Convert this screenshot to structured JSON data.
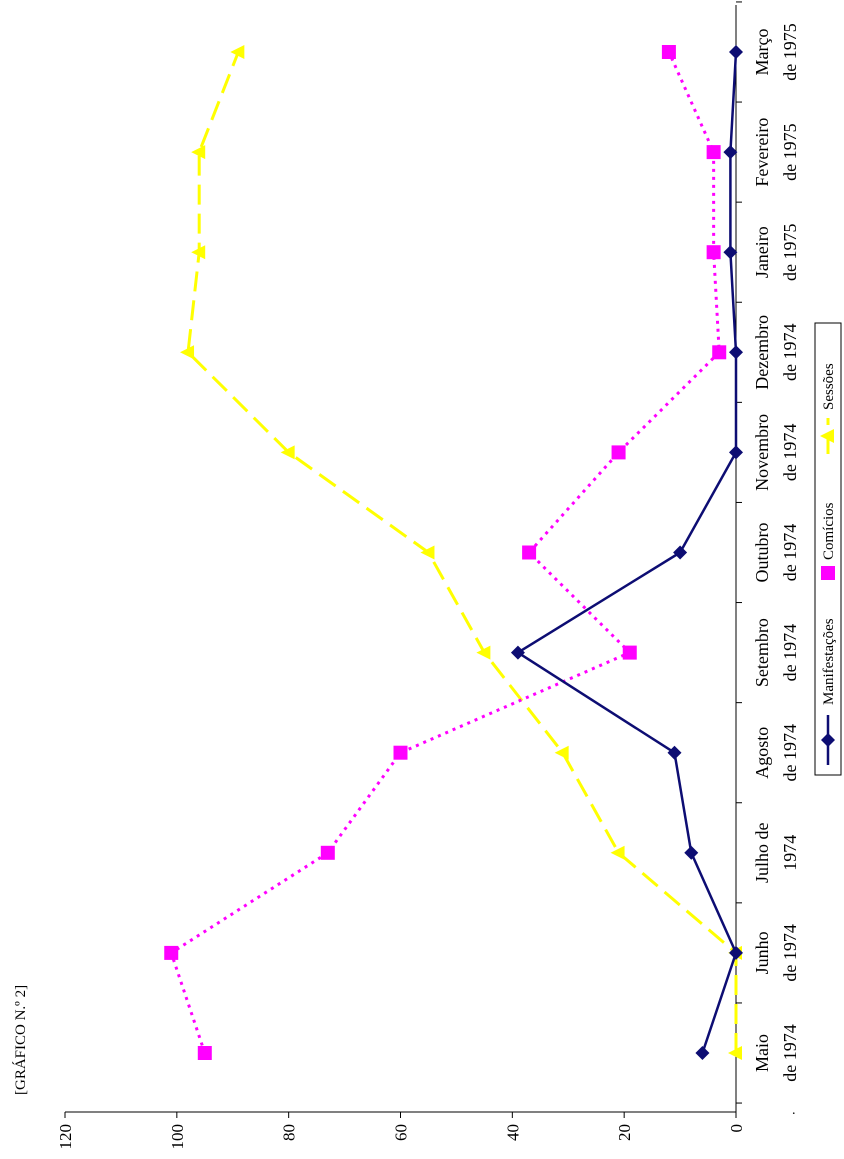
{
  "header": {
    "label": "[GRÁFICO N.º 2]"
  },
  "footnote": ".",
  "chart_data": {
    "type": "line",
    "orientation": "rotated-90",
    "title": "",
    "xlabel": "",
    "ylabel": "",
    "ylim": [
      0,
      120
    ],
    "y_ticks": [
      "0",
      "20",
      "40",
      "60",
      "80",
      "100",
      "120"
    ],
    "categories": [
      [
        "Maio",
        "de 1974"
      ],
      [
        "Junho",
        "de 1974"
      ],
      [
        "Julho de",
        "1974"
      ],
      [
        "Agosto",
        "de 1974"
      ],
      [
        "Setembro",
        "de 1974"
      ],
      [
        "Outubro",
        "de 1974"
      ],
      [
        "Novembro",
        "de 1974"
      ],
      [
        "Dezembro",
        "de 1974"
      ],
      [
        "Janeiro",
        "de 1975"
      ],
      [
        "Fevereiro",
        "de 1975"
      ],
      [
        "Março",
        "de 1975"
      ]
    ],
    "series": [
      {
        "name": "Manifestações",
        "color": "#0d0d73",
        "marker": "diamond",
        "line": "solid",
        "values": [
          6,
          0,
          8,
          11,
          39,
          10,
          0,
          0,
          1,
          1,
          0
        ]
      },
      {
        "name": "Comícios",
        "color": "#ff00ff",
        "marker": "square",
        "line": "dotted",
        "values": [
          95,
          101,
          73,
          60,
          19,
          37,
          21,
          3,
          4,
          4,
          12
        ]
      },
      {
        "name": "Sessões",
        "color": "#ffff00",
        "marker": "triangle",
        "line": "dashed",
        "values": [
          0,
          0,
          21,
          31,
          45,
          55,
          80,
          98,
          96,
          96,
          89
        ]
      }
    ],
    "legend": {
      "placement": "bottom",
      "labels": [
        "Manifestações",
        "Comícios",
        "Sessões"
      ]
    },
    "grid": false
  }
}
